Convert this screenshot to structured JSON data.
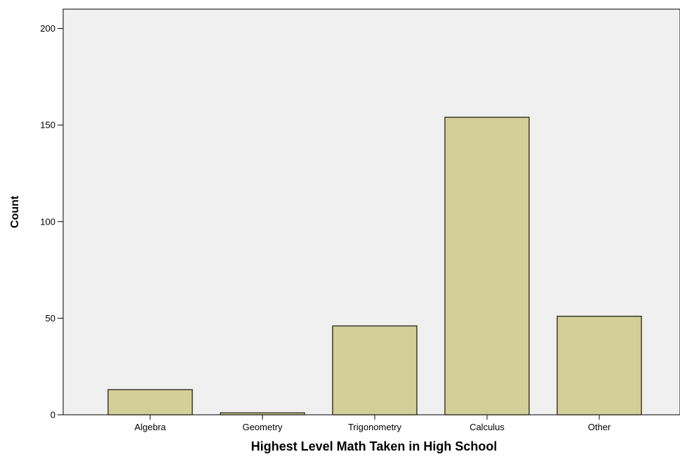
{
  "chart_data": {
    "type": "bar",
    "title": "",
    "xlabel": "Highest Level Math Taken in High School",
    "ylabel": "Count",
    "categories": [
      "Algebra",
      "Geometry",
      "Trigonometry",
      "Calculus",
      "Other"
    ],
    "values": [
      13,
      1,
      46,
      154,
      51
    ],
    "ylim": [
      0,
      210
    ],
    "yticks": [
      0,
      50,
      100,
      150,
      200
    ],
    "grid": false,
    "legend": "none",
    "colors": {
      "plot_background": "#f0f0f0",
      "bar_fill": "#d4cf99",
      "bar_stroke": "#3a3a2a",
      "axis": "#000000"
    }
  }
}
